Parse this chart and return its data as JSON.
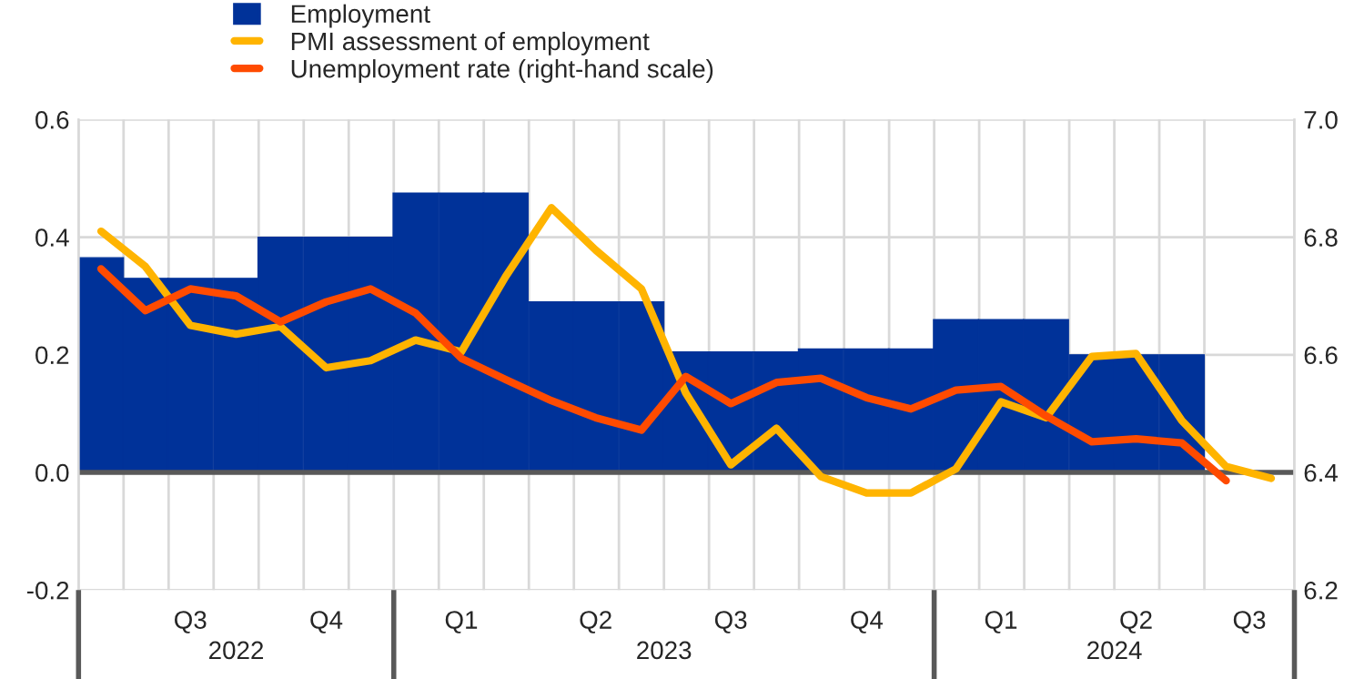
{
  "chart_data": {
    "type": "line",
    "x": [
      "2022-06-16",
      "2022-07-16",
      "2022-08-16",
      "2022-09-16",
      "2022-10-16",
      "2022-11-16",
      "2022-12-16",
      "2023-01-16",
      "2023-02-15",
      "2023-03-16",
      "2023-04-16",
      "2023-05-16",
      "2023-06-16",
      "2023-07-16",
      "2023-08-16",
      "2023-09-16",
      "2023-10-16",
      "2023-11-16",
      "2023-12-16",
      "2024-01-16",
      "2024-02-15",
      "2024-03-16",
      "2024-04-16",
      "2024-05-16",
      "2024-06-16",
      "2024-07-16",
      "2024-08-16"
    ],
    "series": [
      {
        "name": "Employment",
        "type": "bar",
        "color": "#003299",
        "values": [
          0.365,
          0.33,
          0.33,
          0.33,
          0.4,
          0.4,
          0.4,
          0.475,
          0.475,
          0.475,
          0.29,
          0.29,
          0.29,
          0.205,
          0.205,
          0.205,
          0.21,
          0.21,
          0.21,
          0.26,
          0.26,
          0.26,
          0.2,
          0.2,
          0.2,
          null,
          null
        ]
      },
      {
        "name": "PMI assessment of employment",
        "color": "#ffb400",
        "values": [
          0.41,
          0.35,
          0.25,
          0.235,
          0.248,
          0.178,
          0.19,
          0.225,
          0.205,
          0.333,
          0.45,
          0.378,
          0.312,
          0.135,
          0.013,
          0.075,
          -0.007,
          -0.035,
          -0.035,
          0.006,
          0.12,
          0.093,
          0.197,
          0.202,
          0.088,
          0.01,
          -0.01
        ]
      },
      {
        "name": "Unemployment rate (right-hand scale)",
        "color": "#ff4b00",
        "axis": "y2",
        "values": [
          6.746,
          6.675,
          6.712,
          6.7,
          6.656,
          6.69,
          6.712,
          6.671,
          6.594,
          6.558,
          6.522,
          6.493,
          6.472,
          6.563,
          6.517,
          6.553,
          6.56,
          6.527,
          6.508,
          6.54,
          6.546,
          6.496,
          6.452,
          6.457,
          6.45,
          6.386,
          null
        ]
      }
    ],
    "xlim": [
      "2022-06-01",
      "2024-09-01"
    ],
    "xticks": [
      {
        "value": "2022-08-16",
        "label": "Q3"
      },
      {
        "value": "2022-11-16",
        "label": "Q4"
      },
      {
        "value": "2023-02-15",
        "label": "Q1"
      },
      {
        "value": "2023-05-16",
        "label": "Q2"
      },
      {
        "value": "2023-08-16",
        "label": "Q3"
      },
      {
        "value": "2023-11-16",
        "label": "Q4"
      },
      {
        "value": "2024-02-15",
        "label": "Q1"
      },
      {
        "value": "2024-05-16",
        "label": "Q2"
      },
      {
        "value": "2024-08-01",
        "label": "Q3"
      }
    ],
    "x2lim": [
      "2022-06-01",
      "2024-09-01"
    ],
    "x2ticks": [
      {
        "value": "2022-06-01",
        "label": null
      },
      {
        "value": "2022-09-16",
        "label": "2022"
      },
      {
        "value": "2023-01-01",
        "label": null
      },
      {
        "value": "2023-07-01",
        "label": "2023"
      },
      {
        "value": "2024-01-01",
        "label": null
      },
      {
        "value": "2024-05-01",
        "label": "2024"
      },
      {
        "value": "2024-09-01",
        "label": null
      }
    ],
    "ylim": [
      -0.2,
      0.6
    ],
    "yticks": [
      {
        "value": -0.2,
        "label": "-0.2"
      },
      {
        "value": 0,
        "label": "0.0"
      },
      0.2,
      0.4,
      0.6
    ],
    "y2lim": [
      6.2,
      7.0
    ],
    "y2ticks": [
      6.2,
      6.4,
      6.6,
      6.8,
      {
        "value": 7.0,
        "label": "7.0"
      }
    ],
    "grid": true,
    "legend": "top left"
  }
}
